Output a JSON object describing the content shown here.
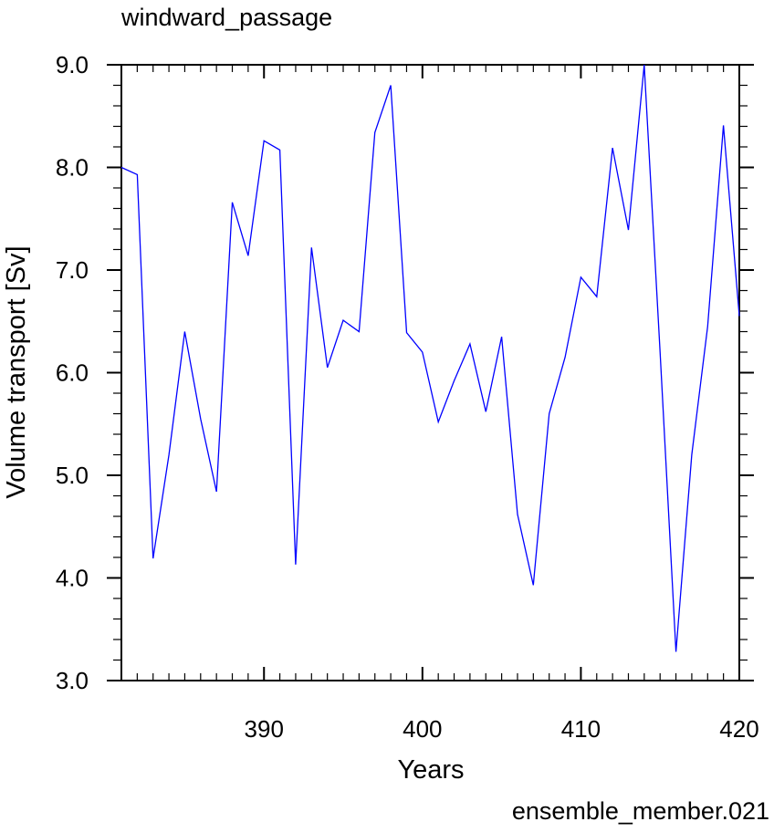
{
  "title": "windward_passage",
  "footer_label": "ensemble_member.021",
  "colors": {
    "line": "#0000ff",
    "footer": "#0000ff",
    "axes": "#000000"
  },
  "chart_data": {
    "type": "line",
    "title": "windward_passage",
    "xlabel": "Years",
    "ylabel": "Volume transport [Sv]",
    "xlim": [
      381,
      420
    ],
    "ylim": [
      3.0,
      9.0
    ],
    "x_ticks": [
      390,
      400,
      410,
      420
    ],
    "x_tick_labels": [
      "390",
      "400",
      "410",
      "420"
    ],
    "y_ticks": [
      3.0,
      4.0,
      5.0,
      6.0,
      7.0,
      8.0,
      9.0
    ],
    "y_tick_labels": [
      "3.0",
      "4.0",
      "5.0",
      "6.0",
      "7.0",
      "8.0",
      "9.0"
    ],
    "grid": false,
    "series": [
      {
        "x": [
          381,
          382,
          383,
          384,
          385,
          386,
          387,
          388,
          389,
          390,
          391,
          392,
          393,
          394,
          395,
          396,
          397,
          398,
          399,
          400,
          401,
          402,
          403,
          404,
          405,
          406,
          407,
          408,
          409,
          410,
          411,
          412,
          413,
          414,
          415,
          416,
          417,
          418,
          419,
          420
        ],
        "values": [
          8.0,
          7.93,
          4.19,
          5.2,
          6.4,
          5.55,
          4.84,
          7.66,
          7.14,
          8.26,
          8.17,
          4.13,
          7.22,
          6.05,
          6.51,
          6.4,
          8.34,
          8.8,
          6.39,
          6.2,
          5.52,
          5.92,
          6.28,
          5.62,
          6.35,
          4.62,
          3.93,
          5.6,
          6.15,
          6.93,
          6.74,
          8.19,
          7.39,
          9.0,
          6.2,
          3.28,
          5.2,
          6.45,
          8.41,
          6.55
        ]
      }
    ]
  }
}
